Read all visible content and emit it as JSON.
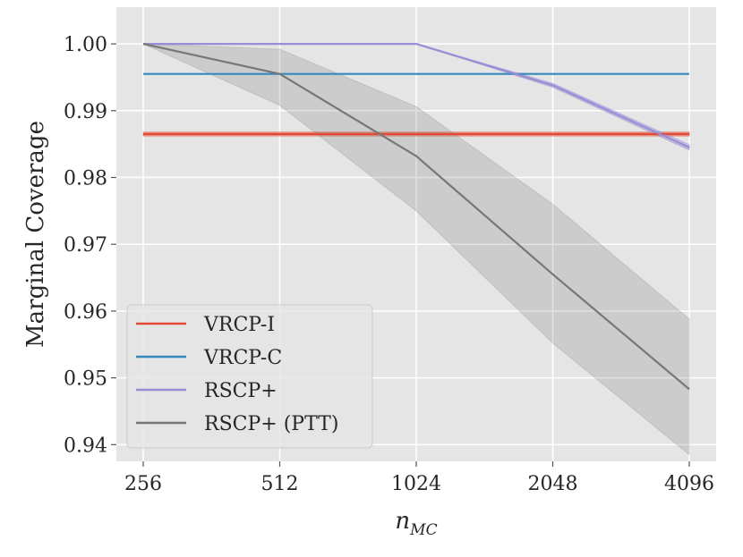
{
  "chart_data": {
    "type": "line",
    "title": "",
    "xlabel_base": "n",
    "xlabel_sub": "MC",
    "ylabel": "Marginal Coverage",
    "x_scale": "log2",
    "x": [
      256,
      512,
      1024,
      2048,
      4096
    ],
    "x_tick_labels": [
      "256",
      "512",
      "1024",
      "2048",
      "4096"
    ],
    "ylim": [
      0.9375,
      1.0055
    ],
    "y_ticks": [
      0.94,
      0.95,
      0.96,
      0.97,
      0.98,
      0.99,
      1.0
    ],
    "y_tick_labels": [
      "0.94",
      "0.95",
      "0.96",
      "0.97",
      "0.98",
      "0.99",
      "1.00"
    ],
    "grid": true,
    "legend_position": "lower-left",
    "series": [
      {
        "name": "VRCP-I",
        "color": "#e24a33",
        "values": [
          0.9865,
          0.9865,
          0.9865,
          0.9865,
          0.9865
        ],
        "band_low": [
          0.9862,
          0.9862,
          0.9862,
          0.9862,
          0.9862
        ],
        "band_high": [
          0.9868,
          0.9868,
          0.9868,
          0.9868,
          0.9868
        ]
      },
      {
        "name": "VRCP-C",
        "color": "#348abd",
        "values": [
          0.9955,
          0.9955,
          0.9955,
          0.9955,
          0.9955
        ]
      },
      {
        "name": "RSCP+",
        "color": "#988ed5",
        "values": [
          1.0,
          1.0,
          1.0,
          0.9938,
          0.9845
        ],
        "band_low": [
          1.0,
          1.0,
          1.0,
          0.9935,
          0.9841
        ],
        "band_high": [
          1.0,
          1.0,
          1.0,
          0.9941,
          0.9849
        ]
      },
      {
        "name": "RSCP+ (PTT)",
        "color": "#777777",
        "values": [
          1.0,
          0.9955,
          0.9832,
          0.9655,
          0.9483
        ],
        "band_low": [
          1.0,
          0.9908,
          0.975,
          0.9552,
          0.9385
        ],
        "band_high": [
          1.0,
          0.9992,
          0.9906,
          0.976,
          0.9588
        ]
      }
    ]
  }
}
